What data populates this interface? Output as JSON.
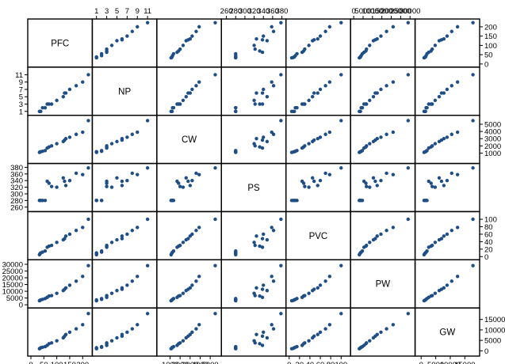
{
  "chart_data": {
    "type": "scatter",
    "title": "",
    "grid": false,
    "point_color": "#1f4e87",
    "variables": [
      {
        "name": "PFC",
        "range": [
          0,
          225
        ],
        "ticks": [
          0,
          50,
          100,
          150,
          200
        ],
        "tick_labels": [
          "0",
          "50",
          "100",
          "150",
          "200"
        ]
      },
      {
        "name": "NP",
        "range": [
          0.8,
          12.2
        ],
        "ticks": [
          1,
          3,
          5,
          7,
          9,
          11
        ],
        "tick_labels": [
          "1",
          "3",
          "5",
          "7",
          "9",
          "11"
        ]
      },
      {
        "name": "CW",
        "range": [
          0,
          5800
        ],
        "ticks": [
          1000,
          2000,
          3000,
          4000,
          5000
        ],
        "tick_labels": [
          "1000",
          "2000",
          "3000",
          "4000",
          "5000"
        ]
      },
      {
        "name": "PS",
        "range": [
          256,
          382
        ],
        "ticks": [
          260,
          280,
          300,
          320,
          340,
          360,
          380
        ],
        "tick_labels": [
          "260",
          "280",
          "300",
          "320",
          "340",
          "360",
          "380"
        ]
      },
      {
        "name": "PVC",
        "range": [
          0,
          112
        ],
        "ticks": [
          0,
          20,
          40,
          60,
          80,
          100
        ],
        "tick_labels": [
          "0",
          "20",
          "40",
          "60",
          "80",
          "100"
        ]
      },
      {
        "name": "PW",
        "range": [
          0,
          31000
        ],
        "ticks": [
          0,
          5000,
          10000,
          15000,
          20000,
          25000,
          30000
        ],
        "tick_labels": [
          "0",
          "5000",
          "10000",
          "15000",
          "20000",
          "25000",
          "30000"
        ]
      },
      {
        "name": "GW",
        "range": [
          -1000,
          19000
        ],
        "ticks": [
          0,
          5000,
          10000,
          15000
        ],
        "tick_labels": [
          "0",
          "5000",
          "10000",
          "15000"
        ]
      }
    ],
    "observations": [
      [
        33,
        1,
        1100,
        280,
        5,
        3000,
        1000
      ],
      [
        35,
        1,
        1150,
        280,
        8,
        3300,
        1200
      ],
      [
        38,
        1,
        1200,
        280,
        10,
        3600,
        1500
      ],
      [
        45,
        2,
        1250,
        280,
        12,
        4000,
        1700
      ],
      [
        55,
        2,
        1350,
        280,
        15,
        4600,
        2000
      ],
      [
        63,
        3,
        1700,
        338,
        25,
        5500,
        2600
      ],
      [
        70,
        3,
        1850,
        332,
        28,
        6500,
        3400
      ],
      [
        80,
        3,
        2000,
        322,
        30,
        6800,
        3800
      ],
      [
        100,
        4,
        2300,
        320,
        38,
        8500,
        4800
      ],
      [
        125,
        5,
        2600,
        348,
        45,
        10500,
        6200
      ],
      [
        130,
        6,
        2800,
        338,
        48,
        11500,
        7000
      ],
      [
        135,
        6,
        3000,
        325,
        55,
        12500,
        7800
      ],
      [
        150,
        7,
        3200,
        340,
        60,
        14500,
        8900
      ],
      [
        175,
        8,
        3600,
        362,
        70,
        17500,
        10500
      ],
      [
        200,
        9,
        3900,
        358,
        78,
        21000,
        12500
      ],
      [
        222,
        11,
        5500,
        378,
        100,
        29000,
        17800
      ]
    ]
  }
}
